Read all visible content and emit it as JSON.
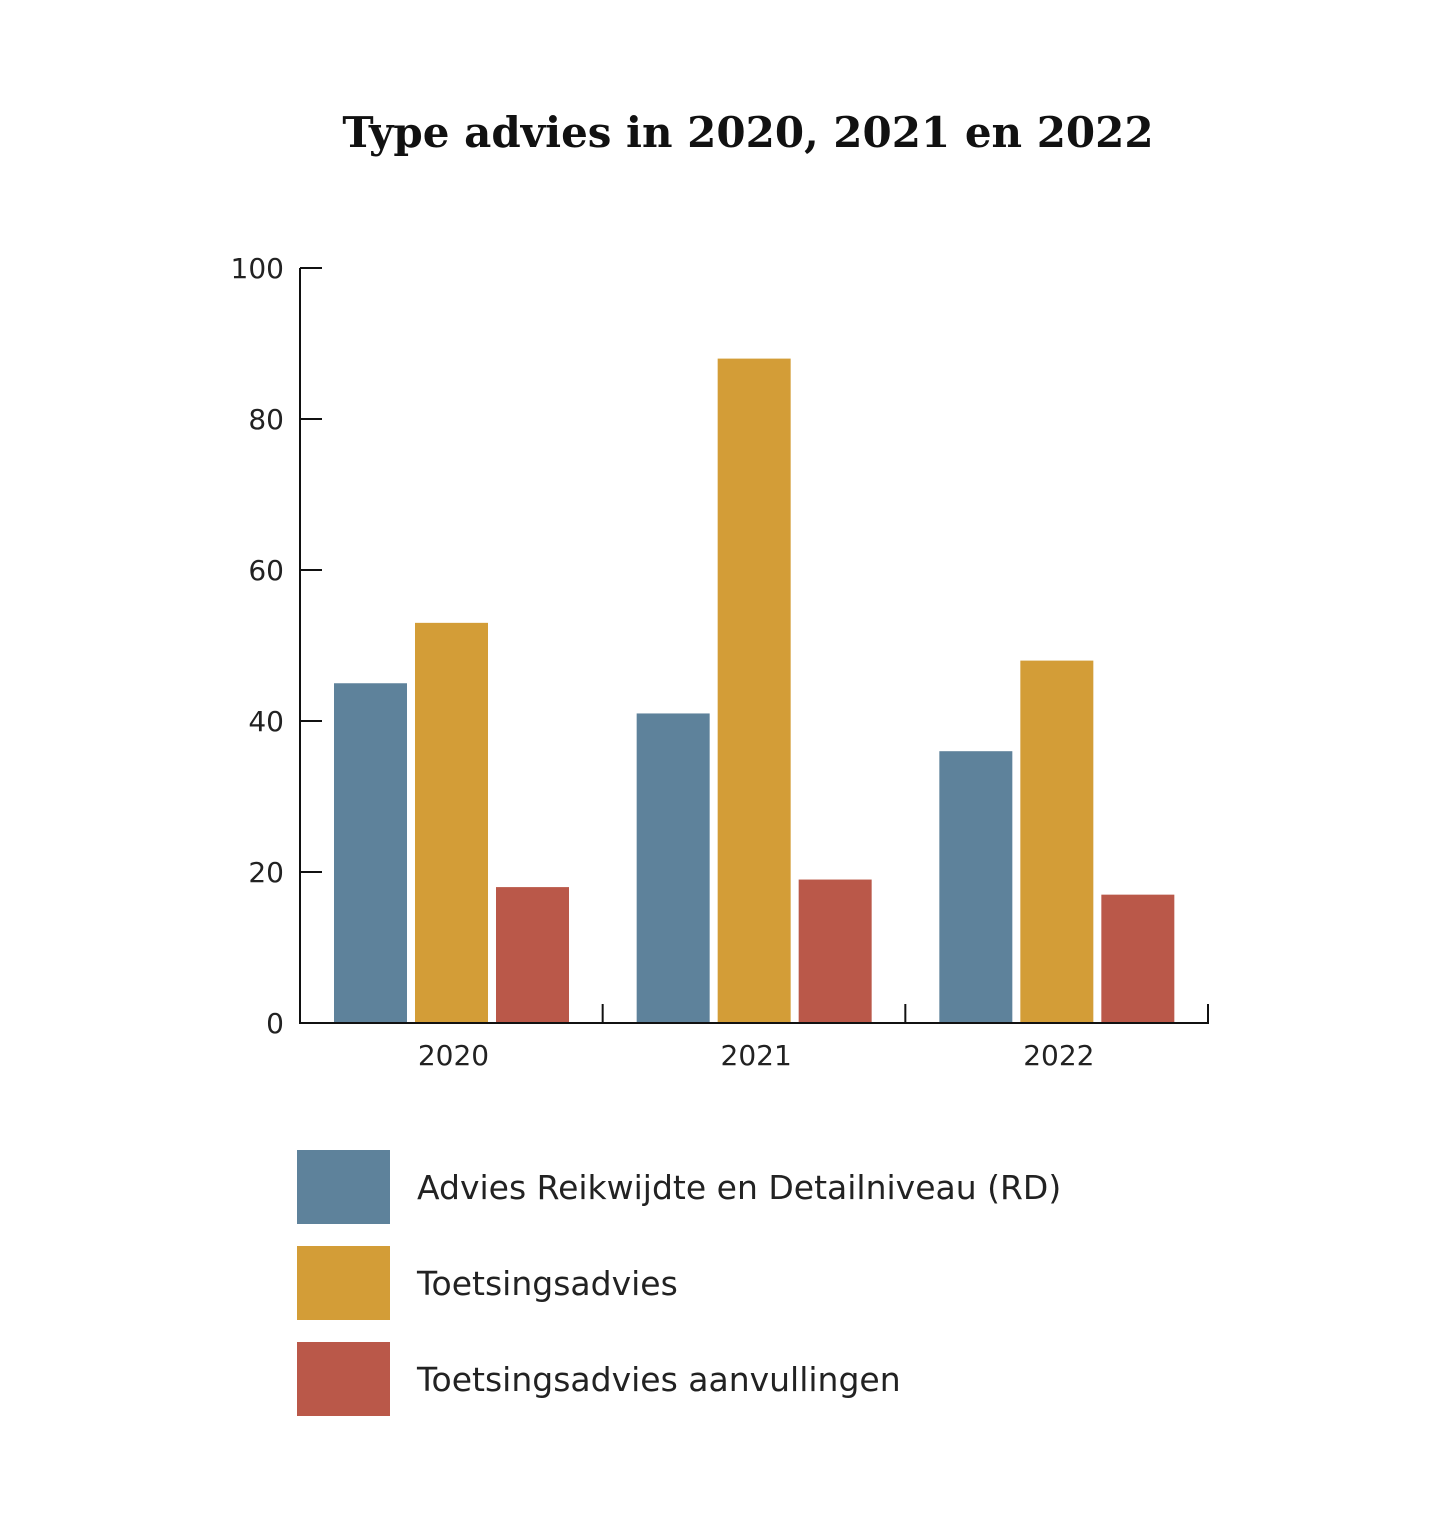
{
  "chart_data": {
    "type": "bar",
    "title": "Type advies in 2020, 2021 en 2022",
    "categories": [
      "2020",
      "2021",
      "2022"
    ],
    "series": [
      {
        "name": "Advies Reikwijdte en Detailniveau (RD)",
        "color": "#5e829b",
        "values": [
          45,
          41,
          36
        ]
      },
      {
        "name": "Toetsingsadvies",
        "color": "#d39d37",
        "values": [
          53,
          88,
          48
        ]
      },
      {
        "name": "Toetsingsadvies aanvullingen",
        "color": "#ba5849",
        "values": [
          18,
          19,
          17
        ]
      }
    ],
    "yticks": [
      "0",
      "20",
      "40",
      "60",
      "80",
      "100"
    ],
    "ylim": [
      0,
      100
    ],
    "xlabel": "",
    "ylabel": "",
    "legend_position": "bottom"
  }
}
